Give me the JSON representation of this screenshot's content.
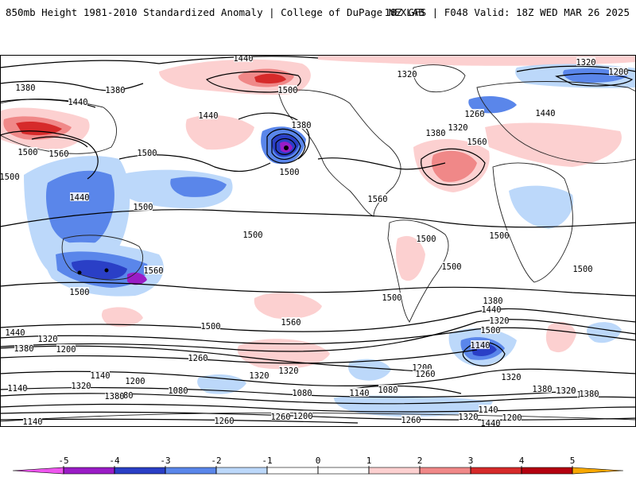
{
  "header": {
    "left": "850mb Height 1981-2010 Standardized Anomaly | College of DuPage NEXLAB",
    "right": "18Z GFS | F048 Valid: 18Z WED MAR 26 2025"
  },
  "colors": {
    "anom_-5": "#ee55ee",
    "anom_-4": "#9a1cc6",
    "anom_-3": "#2a3fc6",
    "anom_-2": "#5a86ea",
    "anom_-1": "#bcd8fa",
    "anom_0": "#ffffff",
    "anom_1": "#fcd0d0",
    "anom_2": "#f08888",
    "anom_3": "#d62a2a",
    "anom_4": "#b40010",
    "anom_5": "#f8a800",
    "contour": "#000000",
    "coast": "#222222"
  },
  "contour_labels": [
    "1440",
    "1500",
    "1320",
    "1200",
    "1380",
    "1380",
    "1440",
    "1440",
    "1320",
    "1260",
    "1380",
    "1320",
    "1440",
    "1560",
    "1500",
    "1560",
    "1500",
    "1380",
    "1500",
    "1440",
    "1500",
    "1500",
    "1560",
    "1500",
    "1500",
    "1500",
    "1500",
    "1560",
    "1500",
    "1500",
    "1500",
    "1500",
    "1440",
    "1380",
    "1320",
    "1500",
    "1560",
    "1440",
    "1320",
    "1380",
    "1200",
    "1260",
    "1140",
    "1200",
    "1320",
    "1320",
    "1380",
    "1200",
    "1260",
    "1140",
    "1140",
    "1260",
    "1080",
    "1080",
    "1140",
    "1380",
    "1320",
    "1260",
    "1200",
    "1140",
    "1320",
    "1500",
    "1440",
    "1380",
    "1320",
    "1260",
    "1200",
    "1140",
    "1080",
    "1260",
    "1320",
    "1380"
  ],
  "legend": {
    "ticks": [
      "-5",
      "-4",
      "-3",
      "-2",
      "-1",
      "0",
      "1",
      "2",
      "3",
      "4",
      "5"
    ]
  }
}
